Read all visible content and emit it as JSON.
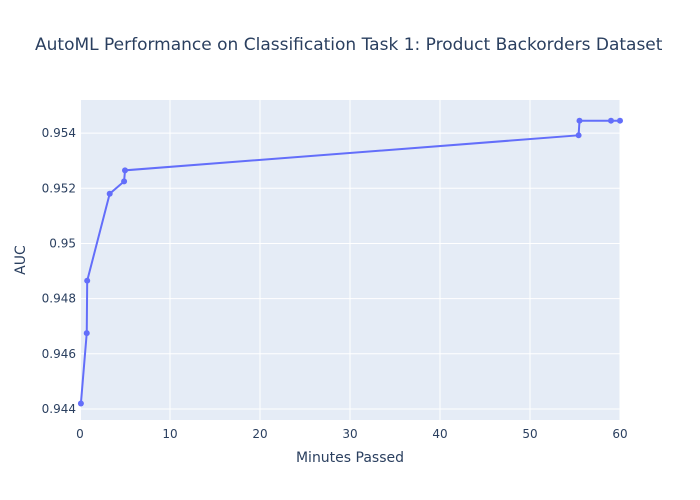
{
  "chart_data": {
    "type": "line",
    "title": "AutoML Performance on Classification Task 1: Product Backorders Dataset",
    "xlabel": "Minutes Passed",
    "ylabel": "AUC",
    "xlim": [
      0,
      60
    ],
    "ylim": [
      0.9436,
      0.9552
    ],
    "xticks": [
      0,
      10,
      20,
      30,
      40,
      50,
      60
    ],
    "xtick_labels": [
      "0",
      "10",
      "20",
      "30",
      "40",
      "50",
      "60"
    ],
    "yticks": [
      0.944,
      0.946,
      0.948,
      0.95,
      0.952,
      0.954
    ],
    "ytick_labels": [
      "0.944",
      "0.946",
      "0.948",
      "0.95",
      "0.952",
      "0.954"
    ],
    "grid": true,
    "colors": {
      "plot_background": "#e5ecf6",
      "grid": "#ffffff",
      "line": "#636efa",
      "text": "#2a3f5f"
    },
    "series": [
      {
        "mode": "lines+markers",
        "x": [
          0.1,
          0.75,
          0.8,
          3.3,
          4.9,
          5.0,
          55.4,
          55.5,
          59.0,
          60.0
        ],
        "y": [
          0.9442,
          0.94675,
          0.94865,
          0.9518,
          0.95225,
          0.95265,
          0.95392,
          0.95445,
          0.95445,
          0.95445
        ]
      }
    ]
  }
}
